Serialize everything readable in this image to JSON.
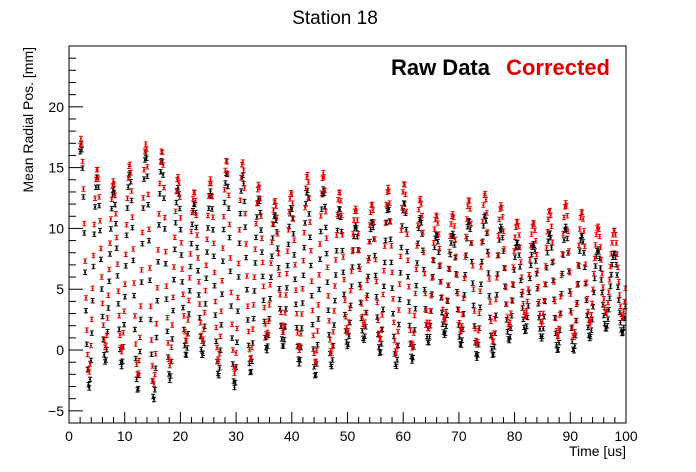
{
  "chart_data": {
    "type": "scatter",
    "title": "Station 18",
    "xlabel": "Time [us]",
    "ylabel": "Mean Radial Pos. [mm]",
    "xlim": [
      0,
      100
    ],
    "ylim": [
      -6,
      25
    ],
    "x_ticks": [
      0,
      10,
      20,
      30,
      40,
      50,
      60,
      70,
      80,
      90,
      100
    ],
    "y_ticks": [
      -5,
      0,
      5,
      10,
      15,
      20
    ],
    "legend_placement": "top-right",
    "error_bars": true,
    "series": [
      {
        "name": "Raw Data",
        "color": "#000000",
        "oscillation": {
          "t0_us": 2.0,
          "t1_us": 100.0,
          "step_us": 0.149,
          "period_us": 2.9,
          "center_mm": 6.3,
          "center_drift_mm_per_us": -0.015,
          "amplitude_mm": 11.5,
          "decay_us": 110.0,
          "phase_rad": 1.57,
          "beat_period_us": 14.9
        }
      },
      {
        "name": "Corrected",
        "color": "#e00000",
        "oscillation": {
          "t0_us": 2.0,
          "t1_us": 100.0,
          "step_us": 0.149,
          "period_us": 2.9,
          "center_mm": 7.2,
          "center_drift_mm_per_us": -0.008,
          "amplitude_mm": 11.0,
          "decay_us": 130.0,
          "phase_rad": 1.57,
          "beat_period_us": 14.9
        }
      }
    ]
  }
}
